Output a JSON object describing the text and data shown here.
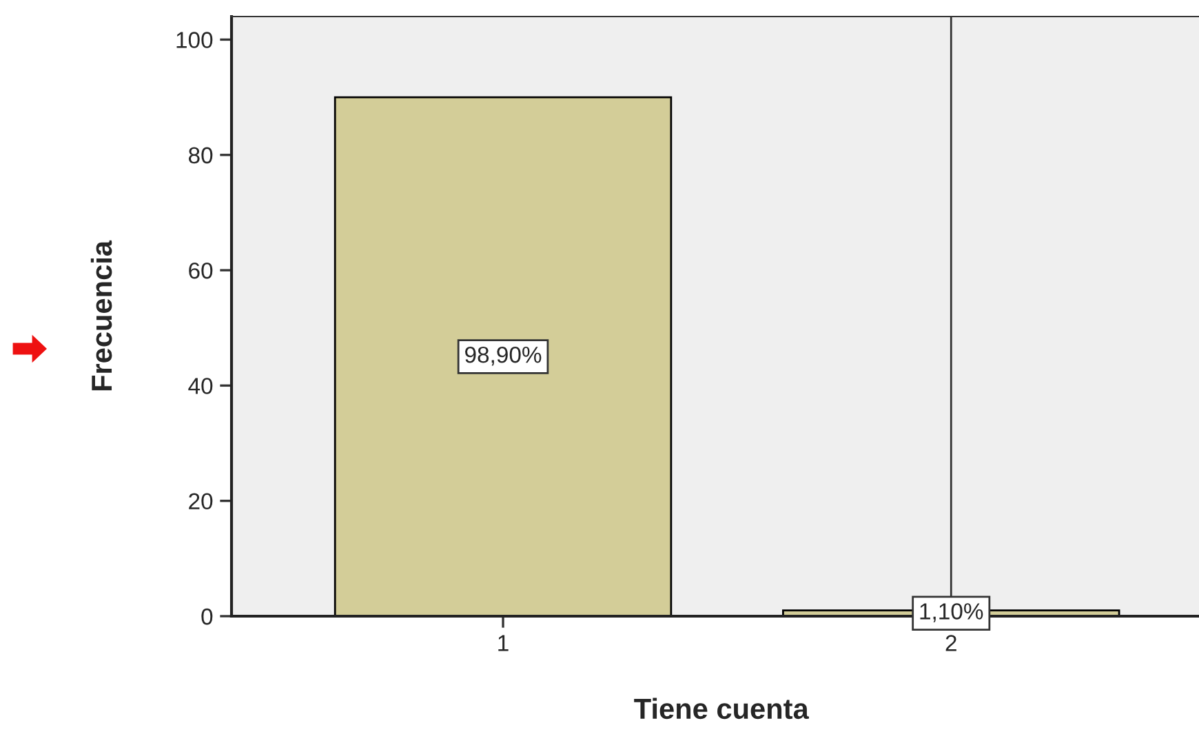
{
  "chart_data": {
    "type": "bar",
    "xlabel": "Tiene cuenta",
    "ylabel": "Frecuencia",
    "categories": [
      "1",
      "2"
    ],
    "values": [
      90,
      1
    ],
    "color": "#d3cd98",
    "annotations": [
      "98,90%",
      "1,10%"
    ],
    "ylim": [
      0,
      104
    ],
    "yticks": [
      0,
      20,
      40,
      60,
      80,
      100
    ],
    "grid": false,
    "ref_lines": [
      {
        "axis": "x",
        "value": "2",
        "color": "#333333"
      }
    ]
  }
}
